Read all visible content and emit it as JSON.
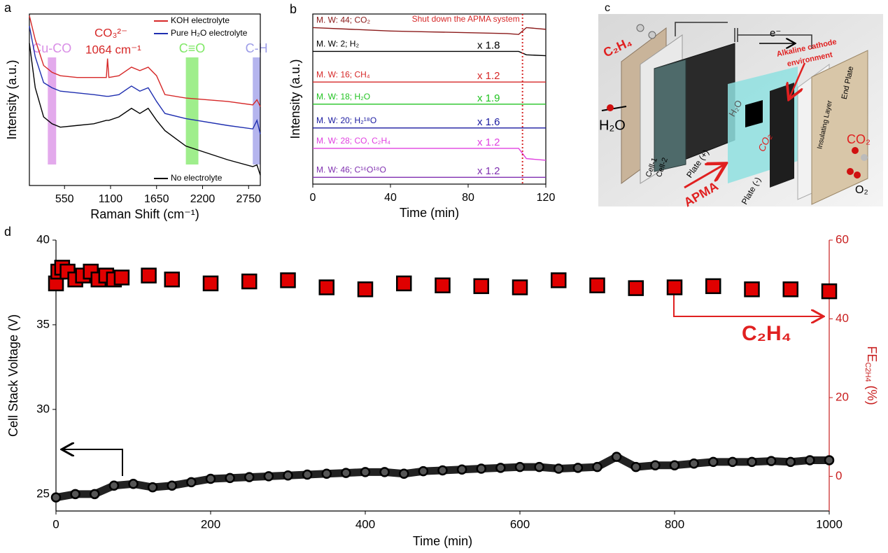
{
  "chart_data": [
    {
      "panel": "a",
      "type": "line",
      "xlabel": "Raman Shift (cm⁻¹)",
      "ylabel": "Intensity (a.u.)",
      "xlim": [
        130,
        2890
      ],
      "xticks": [
        550,
        1100,
        1650,
        2200,
        2750
      ],
      "ylim": [
        0,
        10
      ],
      "x": [
        130,
        200,
        300,
        400,
        500,
        700,
        900,
        1050,
        1064,
        1080,
        1200,
        1350,
        1450,
        1550,
        1650,
        1750,
        2000,
        2500,
        2800,
        2850,
        2890
      ],
      "series": [
        {
          "name": "KOH electrolyte",
          "color": "#d62828",
          "values": [
            9.9,
            8.5,
            7.0,
            6.6,
            6.4,
            6.3,
            6.3,
            6.3,
            7.4,
            6.3,
            6.4,
            6.9,
            6.7,
            6.9,
            6.4,
            5.3,
            5.1,
            4.9,
            4.7,
            5.0,
            4.6
          ]
        },
        {
          "name": "Pure H₂O electrolyte",
          "color": "#1f2fb0",
          "values": [
            9.3,
            7.5,
            6.0,
            5.7,
            5.5,
            5.4,
            5.3,
            5.2,
            5.2,
            5.2,
            5.3,
            5.8,
            5.5,
            5.7,
            4.9,
            4.2,
            3.9,
            3.5,
            3.3,
            3.8,
            3.0
          ]
        },
        {
          "name": "No electrolyte",
          "color": "#000000",
          "values": [
            8.3,
            5.7,
            4.0,
            3.6,
            3.4,
            3.5,
            3.6,
            3.8,
            3.8,
            3.8,
            4.0,
            4.5,
            4.2,
            4.5,
            3.8,
            3.2,
            2.3,
            1.5,
            1.1,
            1.2,
            0.6
          ]
        }
      ],
      "legend": "upper right",
      "bands": [
        {
          "label": "Cu-CO",
          "range": [
            350,
            450
          ],
          "color": "#d98ee6"
        },
        {
          "label": "C≡O",
          "range": [
            2000,
            2150
          ],
          "color": "#7fe866"
        },
        {
          "label": "C-H",
          "range": [
            2800,
            2890
          ],
          "color": "#9c9ce8"
        }
      ],
      "annotations": [
        "CO₃²⁻",
        "1064 cm⁻¹"
      ]
    },
    {
      "panel": "b",
      "type": "line",
      "xlabel": "Time (min)",
      "ylabel": "Intensity (a.u.)",
      "xlim": [
        0,
        120
      ],
      "xticks": [
        0,
        40,
        80,
        120
      ],
      "ylim": [
        0,
        10
      ],
      "x": [
        0,
        20,
        40,
        60,
        80,
        100,
        106,
        110,
        120
      ],
      "series": [
        {
          "name": "M. W: 44; CO₂",
          "color": "#8b1a1a",
          "values": [
            9.2,
            9.1,
            9.0,
            8.95,
            8.9,
            8.85,
            8.8,
            9.2,
            9.1
          ]
        },
        {
          "name": "M. W: 2; H₂",
          "color": "#000000",
          "multiplier": "x 1.8",
          "values": [
            7.8,
            7.8,
            7.8,
            7.8,
            7.8,
            7.8,
            7.8,
            7.6,
            7.55
          ]
        },
        {
          "name": "M. W: 16; CH₄",
          "color": "#d62828",
          "multiplier": "x 1.2",
          "values": [
            6.0,
            6.0,
            6.0,
            6.0,
            6.0,
            6.0,
            6.0,
            6.0,
            6.0
          ]
        },
        {
          "name": "M. W: 18; H₂O",
          "color": "#22c322",
          "multiplier": "x 1.9",
          "values": [
            4.7,
            4.7,
            4.7,
            4.7,
            4.7,
            4.7,
            4.7,
            4.7,
            4.7
          ]
        },
        {
          "name": "M. W: 20; H₂¹⁸O",
          "color": "#1a1aa0",
          "multiplier": "x 1.6",
          "values": [
            3.3,
            3.3,
            3.3,
            3.3,
            3.3,
            3.3,
            3.3,
            3.3,
            3.3
          ]
        },
        {
          "name": "M. W: 28; CO, C₂H₄",
          "color": "#e040e0",
          "multiplier": "x 1.2",
          "values": [
            2.1,
            2.1,
            2.1,
            2.1,
            2.1,
            2.1,
            2.1,
            1.5,
            1.4
          ]
        },
        {
          "name": "M. W: 46; C¹⁶O¹⁸O",
          "color": "#8030b0",
          "multiplier": "x 1.2",
          "values": [
            0.4,
            0.4,
            0.4,
            0.4,
            0.4,
            0.4,
            0.4,
            0.4,
            0.4
          ]
        }
      ],
      "shutdown_time": 108,
      "shutdown_label": "Shut down the APMA system"
    },
    {
      "panel": "d",
      "type": "scatter",
      "xlabel": "Time (min)",
      "ylabel": "Cell Stack Voltage (V)",
      "y2label": [
        "FE",
        "C2H4",
        " (%)"
      ],
      "xlim": [
        0,
        1000
      ],
      "xticks": [
        0,
        200,
        400,
        600,
        800,
        1000
      ],
      "ylim": [
        24,
        40
      ],
      "yticks": [
        25,
        30,
        35,
        40
      ],
      "y2lim": [
        -8.8,
        60
      ],
      "y2ticks": [
        0,
        20,
        40,
        60
      ],
      "y2color": "#c81e1e",
      "series": [
        {
          "color": "#000000",
          "marker": "circle",
          "axis": "y",
          "x": [
            0,
            25,
            50,
            75,
            100,
            125,
            150,
            175,
            200,
            225,
            250,
            275,
            300,
            325,
            350,
            375,
            400,
            425,
            450,
            475,
            500,
            525,
            550,
            575,
            600,
            625,
            650,
            675,
            700,
            725,
            750,
            775,
            800,
            825,
            850,
            875,
            900,
            925,
            950,
            975,
            1000
          ],
          "values": [
            24.8,
            25.0,
            25.0,
            25.5,
            25.6,
            25.4,
            25.5,
            25.7,
            25.9,
            25.95,
            26.0,
            26.05,
            26.1,
            26.15,
            26.2,
            26.25,
            26.3,
            26.3,
            26.2,
            26.35,
            26.4,
            26.45,
            26.5,
            26.55,
            26.6,
            26.6,
            26.5,
            26.55,
            26.6,
            27.2,
            26.6,
            26.7,
            26.7,
            26.8,
            26.9,
            26.9,
            26.9,
            26.95,
            26.9,
            27.0,
            27.0
          ]
        },
        {
          "color": "#e00000",
          "marker": "square",
          "axis": "y2",
          "x": [
            0,
            3,
            8,
            15,
            25,
            35,
            45,
            55,
            65,
            75,
            85,
            120,
            150,
            200,
            250,
            300,
            350,
            400,
            450,
            500,
            550,
            600,
            650,
            700,
            750,
            800,
            850,
            900,
            950,
            1000
          ],
          "values": [
            49,
            52,
            53,
            52,
            50,
            51,
            52,
            50,
            51,
            50,
            50.5,
            51,
            50,
            49,
            49.5,
            49.8,
            48,
            47.5,
            49,
            48.5,
            48.3,
            48,
            49.8,
            48.5,
            47.8,
            48,
            48.3,
            47.5,
            47.5,
            47
          ]
        }
      ],
      "annotations": [
        "C₂H₄"
      ]
    }
  ],
  "diagram": {
    "panel": "c",
    "labels": [
      "C₂H₄",
      "e⁻",
      "Alkaline cathode",
      "environment",
      "H₂O",
      "Cell-1",
      "Cell-2",
      "Plate (+)",
      "H₂O",
      "CO₂",
      "APMA",
      "Plate (-)",
      "Insulating Layer",
      "End Plate",
      "CO₂",
      "O₂"
    ]
  }
}
